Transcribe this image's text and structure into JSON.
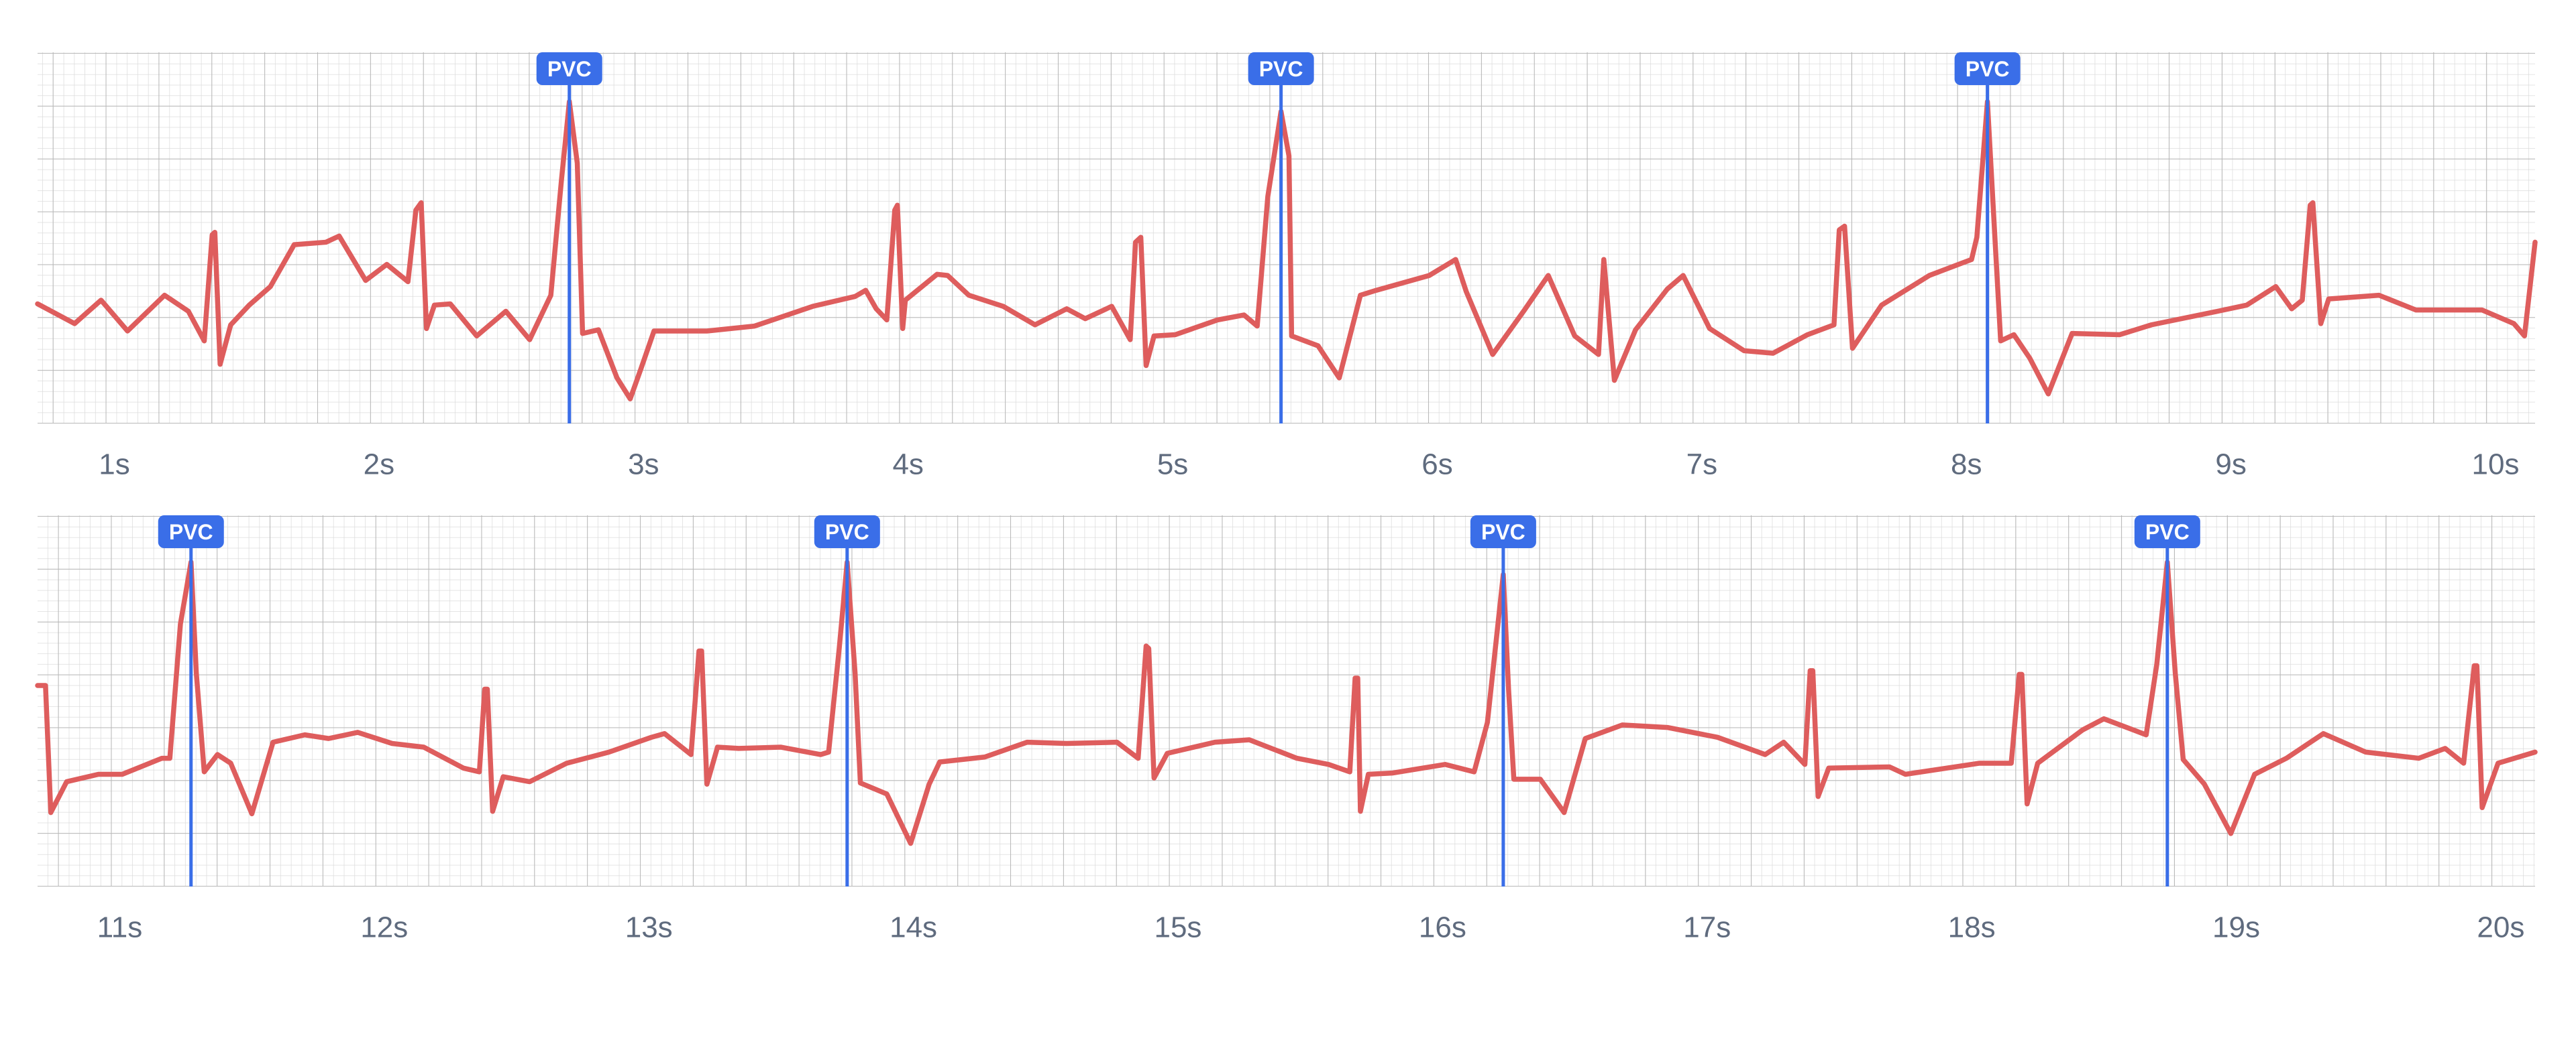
{
  "chart_data": [
    {
      "type": "line",
      "xlim": [
        0.74,
        10.18
      ],
      "ylim": [
        -0.8,
        2.21
      ],
      "xticks": [
        {
          "value": 1,
          "label": "1s"
        },
        {
          "value": 2,
          "label": "2s"
        },
        {
          "value": 3,
          "label": "3s"
        },
        {
          "value": 4,
          "label": "4s"
        },
        {
          "value": 5,
          "label": "5s"
        },
        {
          "value": 6,
          "label": "6s"
        },
        {
          "value": 7,
          "label": "7s"
        },
        {
          "value": 8,
          "label": "8s"
        },
        {
          "value": 9,
          "label": "9s"
        },
        {
          "value": 10,
          "label": "10s"
        }
      ],
      "series": [
        {
          "color": "#de5d5d",
          "x": [
            0.74,
            0.88,
            0.98,
            1.08,
            1.22,
            1.31,
            1.37,
            1.4,
            1.41,
            1.43,
            1.47,
            1.54,
            1.62,
            1.71,
            1.83,
            1.88,
            1.98,
            2.06,
            2.14,
            2.17,
            2.19,
            2.21,
            2.24,
            2.3,
            2.4,
            2.51,
            2.6,
            2.68,
            2.72,
            2.75,
            2.78,
            2.8,
            2.86,
            2.93,
            2.98,
            3.02,
            3.07,
            3.27,
            3.45,
            3.67,
            3.83,
            3.87,
            3.91,
            3.95,
            3.98,
            3.99,
            4.01,
            4.02,
            4.14,
            4.18,
            4.26,
            4.39,
            4.51,
            4.63,
            4.7,
            4.8,
            4.87,
            4.89,
            4.91,
            4.93,
            4.96,
            5.04,
            5.2,
            5.3,
            5.35,
            5.39,
            5.44,
            5.47,
            5.48,
            5.58,
            5.66,
            5.74,
            5.8,
            6.0,
            6.1,
            6.14,
            6.24,
            6.36,
            6.45,
            6.55,
            6.64,
            6.66,
            6.7,
            6.78,
            6.9,
            6.96,
            7.06,
            7.19,
            7.3,
            7.43,
            7.53,
            7.55,
            7.57,
            7.6,
            7.71,
            7.89,
            8.05,
            8.07,
            8.11,
            8.14,
            8.16,
            8.21,
            8.27,
            8.34,
            8.43,
            8.61,
            8.73,
            8.98,
            9.09,
            9.2,
            9.26,
            9.3,
            9.33,
            9.34,
            9.37,
            9.4,
            9.59,
            9.73,
            9.98,
            10.1,
            10.14,
            10.18
          ],
          "values": [
            0.17,
            0.01,
            0.2,
            -0.05,
            0.24,
            0.11,
            -0.13,
            0.73,
            0.75,
            -0.32,
            0.0,
            0.16,
            0.31,
            0.65,
            0.67,
            0.72,
            0.36,
            0.49,
            0.35,
            0.93,
            0.99,
            -0.03,
            0.16,
            0.17,
            -0.09,
            0.11,
            -0.12,
            0.24,
            1.17,
            1.81,
            1.31,
            -0.07,
            -0.04,
            -0.43,
            -0.6,
            -0.36,
            -0.05,
            -0.05,
            -0.01,
            0.15,
            0.23,
            0.28,
            0.13,
            0.04,
            0.93,
            0.97,
            -0.03,
            0.2,
            0.41,
            0.4,
            0.24,
            0.15,
            0.0,
            0.13,
            0.05,
            0.15,
            -0.12,
            0.67,
            0.71,
            -0.33,
            -0.09,
            -0.08,
            0.04,
            0.08,
            -0.01,
            1.04,
            1.73,
            1.37,
            -0.09,
            -0.17,
            -0.43,
            0.24,
            0.28,
            0.4,
            0.53,
            0.27,
            -0.24,
            0.12,
            0.4,
            -0.09,
            -0.24,
            0.53,
            -0.45,
            -0.04,
            0.29,
            0.4,
            -0.03,
            -0.21,
            -0.23,
            -0.08,
            0.0,
            0.77,
            0.8,
            -0.19,
            0.16,
            0.4,
            0.53,
            0.71,
            1.81,
            0.64,
            -0.13,
            -0.08,
            -0.27,
            -0.56,
            -0.07,
            -0.08,
            0.0,
            0.11,
            0.16,
            0.31,
            0.13,
            0.2,
            0.97,
            0.99,
            0.01,
            0.21,
            0.24,
            0.12,
            0.12,
            0.01,
            -0.09,
            0.67
          ]
        }
      ],
      "annotations": [
        {
          "x": 2.75,
          "label": "PVC",
          "color": "#3a6ee8"
        },
        {
          "x": 5.44,
          "label": "PVC",
          "color": "#3a6ee8"
        },
        {
          "x": 8.11,
          "label": "PVC",
          "color": "#3a6ee8"
        }
      ]
    },
    {
      "type": "line",
      "xlim": [
        10.72,
        20.16
      ],
      "ylim": [
        -0.8,
        2.21
      ],
      "xticks": [
        {
          "value": 11,
          "label": "11s"
        },
        {
          "value": 12,
          "label": "12s"
        },
        {
          "value": 13,
          "label": "13s"
        },
        {
          "value": 14,
          "label": "14s"
        },
        {
          "value": 15,
          "label": "15s"
        },
        {
          "value": 16,
          "label": "16s"
        },
        {
          "value": 17,
          "label": "17s"
        },
        {
          "value": 18,
          "label": "18s"
        },
        {
          "value": 19,
          "label": "19s"
        },
        {
          "value": 20,
          "label": "20s"
        }
      ],
      "series": [
        {
          "color": "#de5d5d",
          "x": [
            10.72,
            10.75,
            10.77,
            10.83,
            10.95,
            11.04,
            11.19,
            11.22,
            11.26,
            11.3,
            11.32,
            11.35,
            11.4,
            11.45,
            11.53,
            11.61,
            11.73,
            11.82,
            11.93,
            12.06,
            12.18,
            12.33,
            12.39,
            12.41,
            12.42,
            12.44,
            12.48,
            12.58,
            12.72,
            12.88,
            13.04,
            13.09,
            13.19,
            13.22,
            13.23,
            13.25,
            13.29,
            13.37,
            13.53,
            13.68,
            13.71,
            13.75,
            13.78,
            13.81,
            13.83,
            13.93,
            14.02,
            14.09,
            14.13,
            14.3,
            14.46,
            14.61,
            14.8,
            14.88,
            14.91,
            14.92,
            14.94,
            14.99,
            15.17,
            15.3,
            15.48,
            15.6,
            15.68,
            15.7,
            15.71,
            15.72,
            15.75,
            15.84,
            16.04,
            16.15,
            16.2,
            16.26,
            16.28,
            16.3,
            16.4,
            16.49,
            16.57,
            16.71,
            16.88,
            17.07,
            17.25,
            17.32,
            17.4,
            17.42,
            17.43,
            17.45,
            17.49,
            17.72,
            17.78,
            18.06,
            18.18,
            18.21,
            18.22,
            18.24,
            18.28,
            18.45,
            18.53,
            18.69,
            18.73,
            18.77,
            18.8,
            18.83,
            18.91,
            19.01,
            19.1,
            19.22,
            19.36,
            19.52,
            19.72,
            19.82,
            19.89,
            19.93,
            19.94,
            19.96,
            20.02,
            20.16
          ],
          "values": [
            0.83,
            0.83,
            -0.2,
            0.05,
            0.11,
            0.11,
            0.24,
            0.24,
            1.33,
            1.83,
            0.93,
            0.13,
            0.27,
            0.2,
            -0.21,
            0.37,
            0.43,
            0.4,
            0.45,
            0.36,
            0.33,
            0.16,
            0.13,
            0.8,
            0.8,
            -0.19,
            0.09,
            0.05,
            0.2,
            0.29,
            0.41,
            0.44,
            0.27,
            1.11,
            1.11,
            0.03,
            0.33,
            0.32,
            0.33,
            0.27,
            0.29,
            1.13,
            1.83,
            0.93,
            0.04,
            -0.05,
            -0.45,
            0.03,
            0.21,
            0.25,
            0.37,
            0.36,
            0.37,
            0.24,
            1.15,
            1.13,
            0.08,
            0.28,
            0.37,
            0.39,
            0.24,
            0.19,
            0.13,
            0.89,
            0.89,
            -0.19,
            0.11,
            0.12,
            0.19,
            0.13,
            0.53,
            1.73,
            0.8,
            0.07,
            0.07,
            -0.2,
            0.4,
            0.51,
            0.49,
            0.41,
            0.27,
            0.37,
            0.19,
            0.95,
            0.95,
            -0.07,
            0.16,
            0.17,
            0.11,
            0.2,
            0.2,
            0.92,
            0.92,
            -0.13,
            0.2,
            0.47,
            0.56,
            0.43,
            1.0,
            1.83,
            0.93,
            0.23,
            0.03,
            -0.37,
            0.11,
            0.24,
            0.44,
            0.29,
            0.24,
            0.32,
            0.2,
            0.99,
            0.99,
            -0.16,
            0.2,
            0.29
          ]
        }
      ],
      "annotations": [
        {
          "x": 11.3,
          "label": "PVC",
          "color": "#3a6ee8"
        },
        {
          "x": 13.78,
          "label": "PVC",
          "color": "#3a6ee8"
        },
        {
          "x": 16.26,
          "label": "PVC",
          "color": "#3a6ee8"
        },
        {
          "x": 18.77,
          "label": "PVC",
          "color": "#3a6ee8"
        }
      ]
    }
  ]
}
